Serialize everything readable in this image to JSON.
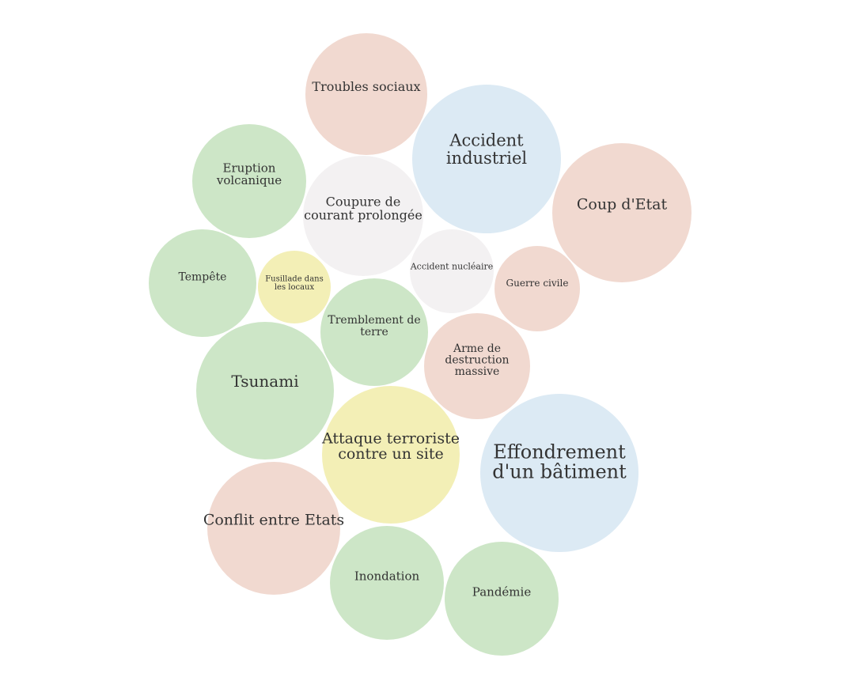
{
  "colors": {
    "green": "#cde6c7",
    "peach": "#f1d9d0",
    "blue": "#dceaf4",
    "grey": "#f3f1f2",
    "yellow": "#f3efb6",
    "text": "#333333"
  },
  "bubbles": [
    {
      "id": "troubles-sociaux",
      "lines": [
        "Troubles sociaux"
      ],
      "color": "peach"
    },
    {
      "id": "accident-industriel",
      "lines": [
        "Accident",
        "industriel"
      ],
      "color": "blue"
    },
    {
      "id": "coup-d-etat",
      "lines": [
        "Coup d'Etat"
      ],
      "color": "peach"
    },
    {
      "id": "eruption-volcanique",
      "lines": [
        "Eruption",
        "volcanique"
      ],
      "color": "green"
    },
    {
      "id": "coupure-de-courant",
      "lines": [
        "Coupure de",
        "courant prolongée"
      ],
      "color": "grey"
    },
    {
      "id": "accident-nucleaire",
      "lines": [
        "Accident nucléaire"
      ],
      "color": "grey"
    },
    {
      "id": "guerre-civile",
      "lines": [
        "Guerre civile"
      ],
      "color": "peach"
    },
    {
      "id": "tempete",
      "lines": [
        "Tempête"
      ],
      "color": "green"
    },
    {
      "id": "fusillade",
      "lines": [
        "Fusillade dans",
        "les locaux"
      ],
      "color": "yellow"
    },
    {
      "id": "tremblement-de-terre",
      "lines": [
        "Tremblement de",
        "terre"
      ],
      "color": "green"
    },
    {
      "id": "arme-de-destruction",
      "lines": [
        "Arme de",
        "destruction",
        "massive"
      ],
      "color": "peach"
    },
    {
      "id": "tsunami",
      "lines": [
        "Tsunami"
      ],
      "color": "green"
    },
    {
      "id": "attaque-terroriste",
      "lines": [
        "Attaque terroriste",
        "contre un site"
      ],
      "color": "yellow"
    },
    {
      "id": "effondrement",
      "lines": [
        "Effondrement",
        "d'un bâtiment"
      ],
      "color": "blue"
    },
    {
      "id": "conflit-entre-etats",
      "lines": [
        "Conflit entre Etats"
      ],
      "color": "peach"
    },
    {
      "id": "inondation",
      "lines": [
        "Inondation"
      ],
      "color": "green"
    },
    {
      "id": "pandemie",
      "lines": [
        "Pandémie"
      ],
      "color": "green"
    }
  ]
}
